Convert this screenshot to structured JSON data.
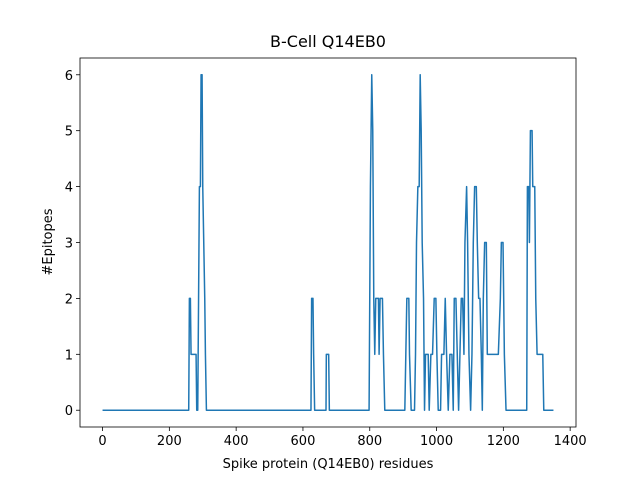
{
  "chart_data": {
    "type": "line",
    "title": "B-Cell Q14EB0",
    "x_label": "Spike protein (Q14EB0) residues",
    "y_label": "#Epitopes",
    "color": "#1f77b4",
    "x": [
      0,
      258,
      260,
      263,
      265,
      280,
      282,
      285,
      290,
      293,
      295,
      298,
      300,
      303,
      306,
      308,
      311,
      624,
      626,
      630,
      632,
      635,
      669,
      670,
      677,
      679,
      798,
      802,
      806,
      809,
      812,
      815,
      818,
      826,
      828,
      831,
      838,
      841,
      845,
      905,
      908,
      911,
      917,
      919,
      924,
      934,
      937,
      940,
      944,
      948,
      951,
      954,
      957,
      961,
      964,
      967,
      975,
      978,
      983,
      988,
      993,
      998,
      1001,
      1005,
      1012,
      1015,
      1022,
      1026,
      1030,
      1035,
      1040,
      1046,
      1050,
      1053,
      1058,
      1062,
      1066,
      1070,
      1074,
      1078,
      1082,
      1085,
      1090,
      1093,
      1097,
      1102,
      1106,
      1110,
      1114,
      1119,
      1122,
      1126,
      1130,
      1134,
      1137,
      1140,
      1144,
      1149,
      1152,
      1160,
      1170,
      1185,
      1191,
      1194,
      1199,
      1203,
      1208,
      1270,
      1272,
      1276,
      1278,
      1281,
      1286,
      1288,
      1294,
      1297,
      1301,
      1318,
      1321,
      1350
    ],
    "values": [
      0,
      0,
      2,
      2,
      1,
      1,
      0,
      0,
      4,
      4,
      6,
      6,
      4,
      3,
      2,
      1,
      0,
      0,
      2,
      2,
      1,
      0,
      0,
      1,
      1,
      0,
      0,
      4,
      6,
      5,
      2,
      1,
      2,
      2,
      1,
      2,
      2,
      1,
      0,
      0,
      1,
      2,
      2,
      1,
      0,
      0,
      1,
      3,
      4,
      4,
      6,
      5,
      3,
      2,
      0,
      1,
      1,
      0,
      1,
      1,
      2,
      2,
      1,
      0,
      0,
      1,
      1,
      2,
      1,
      0,
      1,
      1,
      0,
      2,
      2,
      1,
      0,
      1,
      2,
      2,
      1,
      3,
      4,
      3,
      1,
      0,
      1,
      3,
      4,
      4,
      3,
      2,
      2,
      1,
      0,
      2,
      3,
      3,
      1,
      1,
      1,
      1,
      2,
      3,
      3,
      1,
      0,
      0,
      4,
      4,
      3,
      5,
      5,
      4,
      4,
      2,
      1,
      1,
      0,
      0
    ],
    "xlim": [
      -67.5,
      1417.5
    ],
    "ylim": [
      -0.3,
      6.3
    ],
    "xticks": [
      0,
      200,
      400,
      600,
      800,
      1000,
      1200,
      1400
    ],
    "yticks": [
      0,
      1,
      2,
      3,
      4,
      5,
      6
    ]
  }
}
